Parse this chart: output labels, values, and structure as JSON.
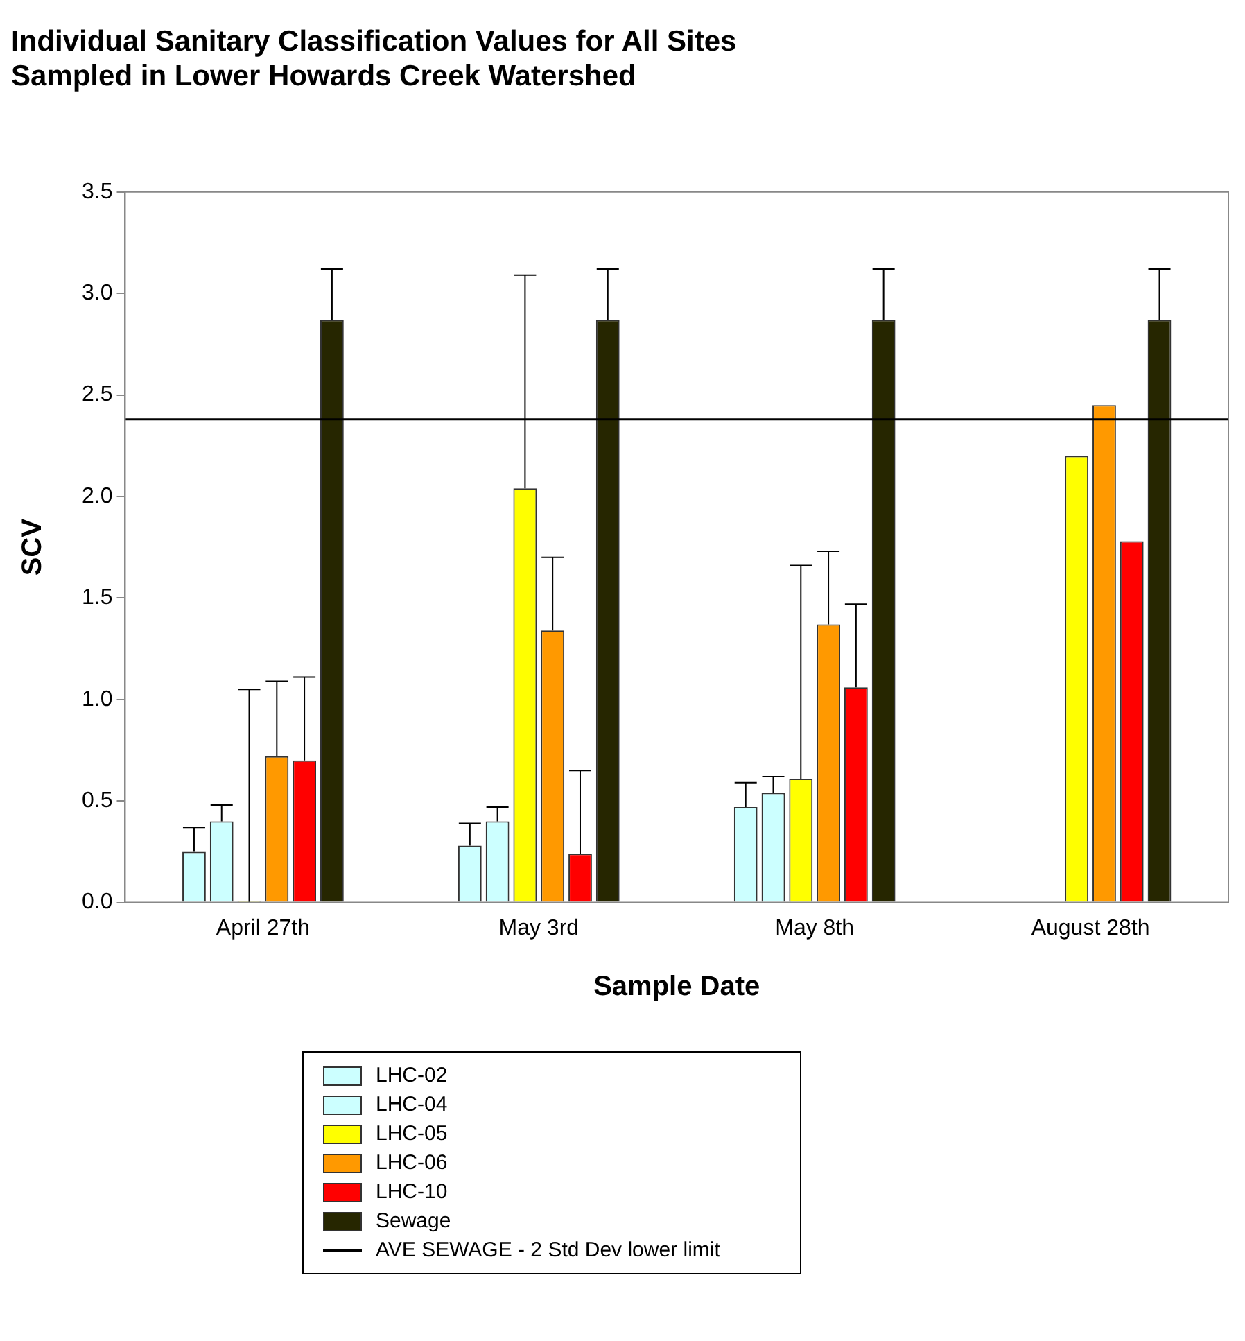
{
  "chart_data": {
    "type": "bar",
    "title": "Individual Sanitary Classification Values for All Sites\nSampled in Lower Howards Creek Watershed",
    "xlabel": "Sample Date",
    "ylabel": "SCV",
    "categories": [
      "April 27th",
      "May 3rd",
      "May 8th",
      "August 28th"
    ],
    "series": [
      {
        "name": "LHC-02",
        "color": "#ccffff",
        "values": [
          0.25,
          0.28,
          0.47,
          null
        ],
        "errors": [
          [
            0.25,
            0.37
          ],
          [
            0.28,
            0.39
          ],
          [
            0.47,
            0.59
          ],
          null
        ]
      },
      {
        "name": "LHC-04",
        "color": "#ccffff",
        "values": [
          0.4,
          0.4,
          0.54,
          null
        ],
        "errors": [
          [
            0.4,
            0.48
          ],
          [
            0.4,
            0.47
          ],
          [
            0.54,
            0.62
          ],
          null
        ]
      },
      {
        "name": "LHC-05",
        "color": "#ffff00",
        "values": [
          0,
          2.04,
          0.61,
          2.2
        ],
        "errors": [
          [
            0,
            1.05
          ],
          [
            2.04,
            3.09
          ],
          [
            0.61,
            1.66
          ],
          null
        ]
      },
      {
        "name": "LHC-06",
        "color": "#ff9900",
        "values": [
          0.72,
          1.34,
          1.37,
          2.45
        ],
        "errors": [
          [
            0.72,
            1.09
          ],
          [
            1.34,
            1.7
          ],
          [
            1.37,
            1.73
          ],
          null
        ]
      },
      {
        "name": "LHC-10",
        "color": "#ff0000",
        "values": [
          0.7,
          0.24,
          1.06,
          1.78
        ],
        "errors": [
          [
            0.7,
            1.11
          ],
          [
            0.24,
            0.65
          ],
          [
            1.06,
            1.47
          ],
          null
        ]
      },
      {
        "name": "Sewage",
        "color": "#262600",
        "values": [
          2.87,
          2.87,
          2.87,
          2.87
        ],
        "errors": [
          [
            2.87,
            3.12
          ],
          [
            2.87,
            3.12
          ],
          [
            2.87,
            3.12
          ],
          [
            2.87,
            3.12
          ]
        ]
      }
    ],
    "ref_lines": [
      {
        "axis": "y",
        "value": 2.38,
        "label": "AVE SEWAGE - 2 Std Dev lower limit",
        "color": "#000000"
      }
    ],
    "ylim": [
      0,
      3.5
    ],
    "yticks": [
      {
        "value": 0,
        "label": "0.0"
      },
      {
        "value": 0.5,
        "label": "0.5"
      },
      {
        "value": 1,
        "label": "1.0"
      },
      {
        "value": 1.5,
        "label": "1.5"
      },
      {
        "value": 2,
        "label": "2.0"
      },
      {
        "value": 2.5,
        "label": "2.5"
      },
      {
        "value": 3,
        "label": "3.0"
      },
      {
        "value": 3.5,
        "label": "3.5"
      }
    ],
    "grid": false,
    "legend": "bottom"
  }
}
